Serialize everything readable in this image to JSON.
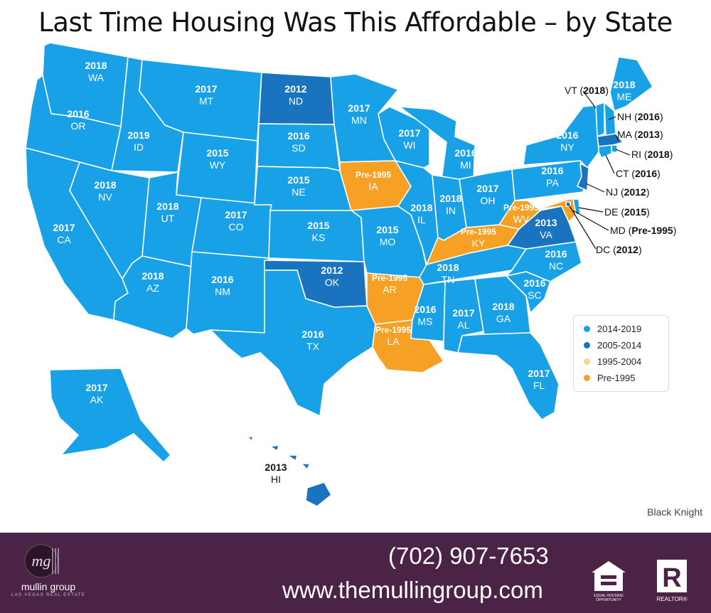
{
  "title": "Last Time Housing Was This Affordable – by State",
  "colors": {
    "2014-2019": "#19a1e8",
    "2005-2014": "#1a73bf",
    "1995-2004": "#fbd38a",
    "Pre-1995": "#f6a026"
  },
  "states": [
    {
      "abbr": "WA",
      "year": "2018",
      "period": "2014-2019"
    },
    {
      "abbr": "OR",
      "year": "2016",
      "period": "2014-2019"
    },
    {
      "abbr": "CA",
      "year": "2017",
      "period": "2014-2019"
    },
    {
      "abbr": "ID",
      "year": "2019",
      "period": "2014-2019"
    },
    {
      "abbr": "NV",
      "year": "2018",
      "period": "2014-2019"
    },
    {
      "abbr": "MT",
      "year": "2017",
      "period": "2014-2019"
    },
    {
      "abbr": "WY",
      "year": "2015",
      "period": "2014-2019"
    },
    {
      "abbr": "UT",
      "year": "2018",
      "period": "2014-2019"
    },
    {
      "abbr": "AZ",
      "year": "2018",
      "period": "2014-2019"
    },
    {
      "abbr": "CO",
      "year": "2017",
      "period": "2014-2019"
    },
    {
      "abbr": "NM",
      "year": "2016",
      "period": "2014-2019"
    },
    {
      "abbr": "ND",
      "year": "2012",
      "period": "2005-2014"
    },
    {
      "abbr": "SD",
      "year": "2016",
      "period": "2014-2019"
    },
    {
      "abbr": "NE",
      "year": "2015",
      "period": "2014-2019"
    },
    {
      "abbr": "KS",
      "year": "2015",
      "period": "2014-2019"
    },
    {
      "abbr": "OK",
      "year": "2012",
      "period": "2005-2014"
    },
    {
      "abbr": "TX",
      "year": "2016",
      "period": "2014-2019"
    },
    {
      "abbr": "MN",
      "year": "2017",
      "period": "2014-2019"
    },
    {
      "abbr": "IA",
      "year": "Pre-1995",
      "period": "Pre-1995"
    },
    {
      "abbr": "MO",
      "year": "2015",
      "period": "2014-2019"
    },
    {
      "abbr": "AR",
      "year": "Pre-1995",
      "period": "Pre-1995"
    },
    {
      "abbr": "LA",
      "year": "Pre-1995",
      "period": "Pre-1995"
    },
    {
      "abbr": "WI",
      "year": "2017",
      "period": "2014-2019"
    },
    {
      "abbr": "IL",
      "year": "2018",
      "period": "2014-2019"
    },
    {
      "abbr": "MI",
      "year": "2016",
      "period": "2014-2019"
    },
    {
      "abbr": "IN",
      "year": "2018",
      "period": "2014-2019"
    },
    {
      "abbr": "OH",
      "year": "2017",
      "period": "2014-2019"
    },
    {
      "abbr": "KY",
      "year": "Pre-1995",
      "period": "Pre-1995"
    },
    {
      "abbr": "TN",
      "year": "2018",
      "period": "2014-2019"
    },
    {
      "abbr": "MS",
      "year": "2016",
      "period": "2014-2019"
    },
    {
      "abbr": "AL",
      "year": "2017",
      "period": "2014-2019"
    },
    {
      "abbr": "GA",
      "year": "2018",
      "period": "2014-2019"
    },
    {
      "abbr": "FL",
      "year": "2017",
      "period": "2014-2019"
    },
    {
      "abbr": "SC",
      "year": "2016",
      "period": "2014-2019"
    },
    {
      "abbr": "NC",
      "year": "2016",
      "period": "2014-2019"
    },
    {
      "abbr": "VA",
      "year": "2013",
      "period": "2005-2014"
    },
    {
      "abbr": "WV",
      "year": "Pre-1995",
      "period": "Pre-1995"
    },
    {
      "abbr": "PA",
      "year": "2016",
      "period": "2014-2019"
    },
    {
      "abbr": "NY",
      "year": "2016",
      "period": "2014-2019"
    },
    {
      "abbr": "ME",
      "year": "2018",
      "period": "2014-2019"
    },
    {
      "abbr": "AK",
      "year": "2017",
      "period": "2014-2019"
    },
    {
      "abbr": "HI",
      "year": "2013",
      "period": "2005-2014"
    },
    {
      "abbr": "VT",
      "year": "2018",
      "period": "2014-2019"
    },
    {
      "abbr": "NH",
      "year": "2016",
      "period": "2014-2019"
    },
    {
      "abbr": "MA",
      "year": "2013",
      "period": "2005-2014"
    },
    {
      "abbr": "RI",
      "year": "2018",
      "period": "2014-2019"
    },
    {
      "abbr": "CT",
      "year": "2016",
      "period": "2014-2019"
    },
    {
      "abbr": "NJ",
      "year": "2012",
      "period": "2005-2014"
    },
    {
      "abbr": "DE",
      "year": "2015",
      "period": "2014-2019"
    },
    {
      "abbr": "MD",
      "year": "Pre-1995",
      "period": "Pre-1995"
    },
    {
      "abbr": "DC",
      "year": "2012",
      "period": "2005-2014"
    }
  ],
  "legend": {
    "items": [
      {
        "label": "2014-2019",
        "color": "#19a1e8"
      },
      {
        "label": "2005-2014",
        "color": "#1a73bf"
      },
      {
        "label": "1995-2004",
        "color": "#fbd38a"
      },
      {
        "label": "Pre-1995",
        "color": "#f6a026"
      }
    ]
  },
  "source": "Black Knight",
  "footer": {
    "logo_name": "mullin group",
    "logo_sub": "LAS VEGAS REAL ESTATE",
    "phone": "(702) 907-7653",
    "website": "www.themullingroup.com",
    "eho_label": "EQUAL HOUSING OPPORTUNITY",
    "realtor_label": "REALTOR®"
  }
}
